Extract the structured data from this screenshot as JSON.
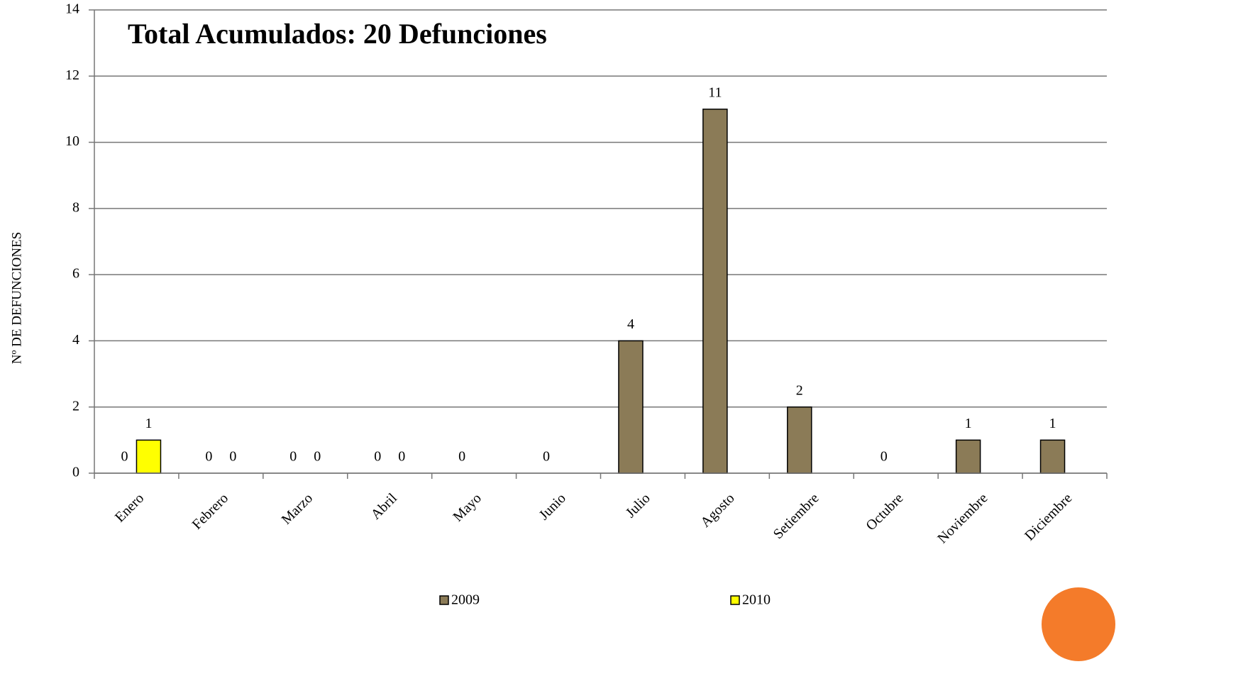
{
  "chart_data": {
    "type": "bar",
    "title": "Total Acumulados: 20 Defunciones",
    "y_label": "Nº DE DEFUNCIONES",
    "categories": [
      "Enero",
      "Febrero",
      "Marzo",
      "Abril",
      "Mayo",
      "Junio",
      "Julio",
      "Agosto",
      "Setiembre",
      "Octubre",
      "Noviembre",
      "Diciembre"
    ],
    "series": [
      {
        "name": "2009",
        "color": "#8b7b57",
        "values": [
          0,
          0,
          0,
          0,
          0,
          0,
          4,
          11,
          2,
          0,
          1,
          1
        ]
      },
      {
        "name": "2010",
        "color": "#ffff00",
        "values": [
          1,
          0,
          0,
          0,
          null,
          null,
          null,
          null,
          null,
          null,
          null,
          null
        ]
      }
    ],
    "ylim": [
      0,
      14
    ],
    "yticks": [
      0,
      2,
      4,
      6,
      8,
      10,
      12,
      14
    ],
    "grid": true,
    "legend": "bottom"
  }
}
